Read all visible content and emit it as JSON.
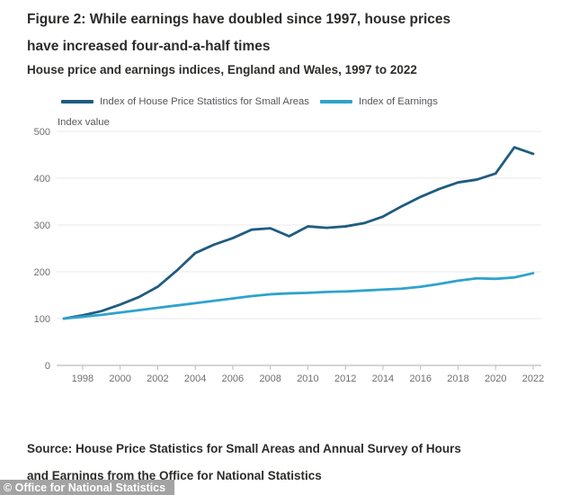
{
  "page": {
    "title_line1": "Figure 2: While earnings have doubled since 1997, house prices",
    "title_line2": "have increased four-and-a-half times",
    "subtitle": "House price and earnings indices, England and Wales, 1997 to 2022",
    "source_line1": "Source: House Price Statistics for Small Areas and Annual Survey of Hours",
    "source_line2": "and Earnings from the Office for National Statistics",
    "watermark": "© Office for National Statistics"
  },
  "chart_data": {
    "type": "line",
    "title": "House price and earnings indices, England and Wales, 1997 to 2022",
    "xlabel": "",
    "ylabel": "Index value",
    "ylim": [
      0,
      500
    ],
    "yticks": [
      0,
      100,
      200,
      300,
      400,
      500
    ],
    "xticks": [
      1998,
      2000,
      2002,
      2004,
      2006,
      2008,
      2010,
      2012,
      2014,
      2016,
      2018,
      2020,
      2022
    ],
    "grid": "horizontal",
    "legend_position": "top-left",
    "x": [
      1997,
      1998,
      1999,
      2000,
      2001,
      2002,
      2003,
      2004,
      2005,
      2006,
      2007,
      2008,
      2009,
      2010,
      2011,
      2012,
      2013,
      2014,
      2015,
      2016,
      2017,
      2018,
      2019,
      2020,
      2021,
      2022
    ],
    "series": [
      {
        "name": "Index of House Price Statistics for Small Areas",
        "color": "#1f5c7f",
        "values": [
          100,
          107,
          116,
          130,
          146,
          168,
          202,
          240,
          258,
          272,
          290,
          293,
          276,
          297,
          294,
          297,
          304,
          318,
          340,
          360,
          377,
          391,
          397,
          410,
          466,
          452
        ]
      },
      {
        "name": "Index of Earnings",
        "color": "#2fa3cc",
        "values": [
          100,
          104,
          108,
          113,
          118,
          123,
          128,
          133,
          138,
          143,
          148,
          152,
          154,
          155,
          157,
          158,
          160,
          162,
          164,
          168,
          174,
          181,
          186,
          185,
          188,
          197
        ]
      }
    ]
  },
  "colors": {
    "grid": "#e9e9e9",
    "axis": "#bcbcbc",
    "tick_text": "#6f7071",
    "heading_text": "#2d2c2a",
    "legend_text": "#55565a",
    "watermark_bg": "#a3a3a3",
    "watermark_text": "#ffffff"
  }
}
